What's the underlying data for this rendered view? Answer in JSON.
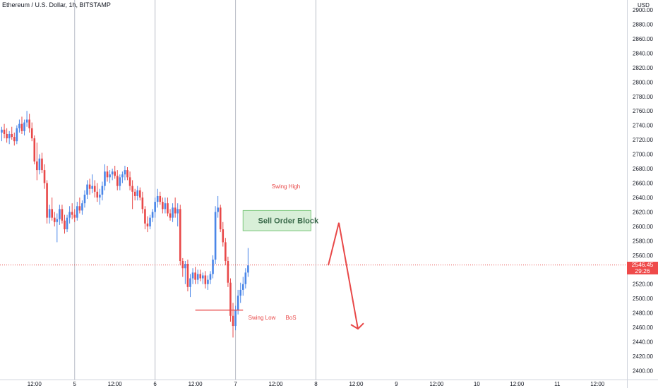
{
  "header": {
    "title": "Ethereum / U.S. Dollar, 1h, BITSTAMP"
  },
  "price_axis": {
    "currency": "USD"
  },
  "last_price": {
    "value": "2546.45",
    "countdown": "29:26",
    "color": "#ef4a4a"
  },
  "colors": {
    "up": "#4a86e8",
    "down": "#e84848",
    "zone_fill": "#d8efd8",
    "zone_border": "#7cc87c",
    "annotation": "#e84848"
  },
  "annotations": {
    "swing_high": "Swing High",
    "swing_low": "Swing Low",
    "bos": "BoS",
    "order_block": "Sell Order Block"
  },
  "chart_data": {
    "type": "candlestick",
    "symbol": "Ethereum / U.S. Dollar",
    "interval": "1h",
    "exchange": "BITSTAMP",
    "ylim": [
      2390,
      2910
    ],
    "y_ticks": [
      2400,
      2420,
      2440,
      2460,
      2480,
      2500,
      2520,
      2540,
      2560,
      2580,
      2600,
      2620,
      2640,
      2660,
      2680,
      2700,
      2720,
      2740,
      2760,
      2780,
      2800,
      2820,
      2840,
      2860,
      2880,
      2900
    ],
    "x_ticks": [
      {
        "label": "12:00",
        "bar": 13
      },
      {
        "label": "5",
        "bar": 29
      },
      {
        "label": "12:00",
        "bar": 45
      },
      {
        "label": "6",
        "bar": 61
      },
      {
        "label": "12:00",
        "bar": 77
      },
      {
        "label": "7",
        "bar": 93
      },
      {
        "label": "12:00",
        "bar": 109
      },
      {
        "label": "8",
        "bar": 125
      },
      {
        "label": "12:00",
        "bar": 141
      },
      {
        "label": "9",
        "bar": 157
      },
      {
        "label": "12:00",
        "bar": 173
      },
      {
        "label": "10",
        "bar": 189
      },
      {
        "label": "12:00",
        "bar": 205
      },
      {
        "label": "11",
        "bar": 221
      },
      {
        "label": "12:00",
        "bar": 237
      }
    ],
    "day_separators": [
      29,
      61,
      93,
      125
    ],
    "candles": [
      [
        2730,
        2738,
        2718,
        2734
      ],
      [
        2734,
        2742,
        2722,
        2728
      ],
      [
        2728,
        2736,
        2716,
        2722
      ],
      [
        2722,
        2732,
        2714,
        2728
      ],
      [
        2728,
        2738,
        2720,
        2724
      ],
      [
        2724,
        2730,
        2712,
        2718
      ],
      [
        2718,
        2740,
        2714,
        2736
      ],
      [
        2736,
        2748,
        2730,
        2742
      ],
      [
        2742,
        2752,
        2728,
        2732
      ],
      [
        2732,
        2748,
        2726,
        2744
      ],
      [
        2744,
        2760,
        2738,
        2748
      ],
      [
        2748,
        2756,
        2730,
        2736
      ],
      [
        2736,
        2744,
        2718,
        2722
      ],
      [
        2722,
        2726,
        2686,
        2690
      ],
      [
        2690,
        2716,
        2664,
        2678
      ],
      [
        2678,
        2700,
        2672,
        2694
      ],
      [
        2694,
        2702,
        2674,
        2678
      ],
      [
        2678,
        2686,
        2652,
        2660
      ],
      [
        2660,
        2664,
        2604,
        2612
      ],
      [
        2612,
        2630,
        2604,
        2624
      ],
      [
        2624,
        2640,
        2608,
        2612
      ],
      [
        2612,
        2620,
        2600,
        2606
      ],
      [
        2606,
        2618,
        2578,
        2610
      ],
      [
        2610,
        2630,
        2602,
        2624
      ],
      [
        2624,
        2630,
        2604,
        2608
      ],
      [
        2608,
        2616,
        2590,
        2596
      ],
      [
        2596,
        2616,
        2592,
        2612
      ],
      [
        2612,
        2628,
        2604,
        2620
      ],
      [
        2620,
        2632,
        2610,
        2616
      ],
      [
        2616,
        2624,
        2606,
        2612
      ],
      [
        2612,
        2634,
        2608,
        2628
      ],
      [
        2628,
        2640,
        2618,
        2622
      ],
      [
        2622,
        2636,
        2616,
        2632
      ],
      [
        2632,
        2650,
        2626,
        2644
      ],
      [
        2644,
        2664,
        2638,
        2658
      ],
      [
        2658,
        2666,
        2644,
        2652
      ],
      [
        2652,
        2672,
        2646,
        2656
      ],
      [
        2656,
        2664,
        2640,
        2648
      ],
      [
        2648,
        2660,
        2634,
        2640
      ],
      [
        2640,
        2652,
        2630,
        2644
      ],
      [
        2644,
        2662,
        2636,
        2656
      ],
      [
        2656,
        2686,
        2650,
        2676
      ],
      [
        2676,
        2684,
        2662,
        2668
      ],
      [
        2668,
        2678,
        2660,
        2672
      ],
      [
        2672,
        2680,
        2664,
        2676
      ],
      [
        2676,
        2684,
        2666,
        2670
      ],
      [
        2670,
        2678,
        2650,
        2656
      ],
      [
        2656,
        2672,
        2650,
        2668
      ],
      [
        2668,
        2676,
        2660,
        2672
      ],
      [
        2672,
        2684,
        2664,
        2678
      ],
      [
        2678,
        2682,
        2664,
        2668
      ],
      [
        2668,
        2676,
        2650,
        2656
      ],
      [
        2656,
        2664,
        2624,
        2648
      ],
      [
        2648,
        2652,
        2636,
        2642
      ],
      [
        2642,
        2656,
        2636,
        2650
      ],
      [
        2650,
        2654,
        2636,
        2640
      ],
      [
        2640,
        2648,
        2618,
        2624
      ],
      [
        2624,
        2628,
        2596,
        2604
      ],
      [
        2604,
        2614,
        2592,
        2600
      ],
      [
        2600,
        2616,
        2596,
        2612
      ],
      [
        2612,
        2624,
        2606,
        2620
      ],
      [
        2620,
        2640,
        2612,
        2634
      ],
      [
        2634,
        2652,
        2626,
        2642
      ],
      [
        2642,
        2648,
        2630,
        2634
      ],
      [
        2634,
        2640,
        2618,
        2624
      ],
      [
        2624,
        2640,
        2618,
        2632
      ],
      [
        2632,
        2640,
        2614,
        2618
      ],
      [
        2618,
        2624,
        2608,
        2612
      ],
      [
        2612,
        2632,
        2606,
        2626
      ],
      [
        2626,
        2640,
        2612,
        2618
      ],
      [
        2618,
        2632,
        2600,
        2624
      ],
      [
        2624,
        2630,
        2546,
        2552
      ],
      [
        2552,
        2556,
        2530,
        2542
      ],
      [
        2542,
        2552,
        2520,
        2548
      ],
      [
        2548,
        2554,
        2510,
        2516
      ],
      [
        2516,
        2534,
        2502,
        2528
      ],
      [
        2528,
        2542,
        2520,
        2536
      ],
      [
        2536,
        2544,
        2520,
        2526
      ],
      [
        2526,
        2540,
        2520,
        2534
      ],
      [
        2534,
        2540,
        2524,
        2528
      ],
      [
        2528,
        2536,
        2520,
        2532
      ],
      [
        2532,
        2538,
        2514,
        2520
      ],
      [
        2520,
        2532,
        2512,
        2526
      ],
      [
        2526,
        2538,
        2520,
        2534
      ],
      [
        2534,
        2560,
        2528,
        2554
      ],
      [
        2554,
        2628,
        2548,
        2620
      ],
      [
        2620,
        2642,
        2612,
        2626
      ],
      [
        2626,
        2630,
        2592,
        2596
      ],
      [
        2596,
        2606,
        2572,
        2578
      ],
      [
        2578,
        2584,
        2546,
        2552
      ],
      [
        2552,
        2558,
        2516,
        2522
      ],
      [
        2522,
        2528,
        2468,
        2476
      ],
      [
        2476,
        2494,
        2446,
        2462
      ],
      [
        2462,
        2490,
        2456,
        2484
      ],
      [
        2484,
        2512,
        2478,
        2504
      ],
      [
        2504,
        2522,
        2494,
        2512
      ],
      [
        2512,
        2530,
        2504,
        2520
      ],
      [
        2520,
        2542,
        2514,
        2536
      ],
      [
        2536,
        2570,
        2530,
        2546
      ]
    ],
    "projection": [
      {
        "bar": 102,
        "price": 2546
      },
      {
        "bar": 106,
        "price": 2605
      },
      {
        "bar": 112,
        "price": 2458
      }
    ],
    "zones": [
      {
        "name": "Sell Order Block",
        "from_bar": 96,
        "to_bar": 123,
        "top": 2622,
        "bottom": 2594
      }
    ],
    "levels": [
      {
        "name": "BoS",
        "from_bar": 77,
        "to_bar": 96,
        "price": 2484
      }
    ]
  }
}
